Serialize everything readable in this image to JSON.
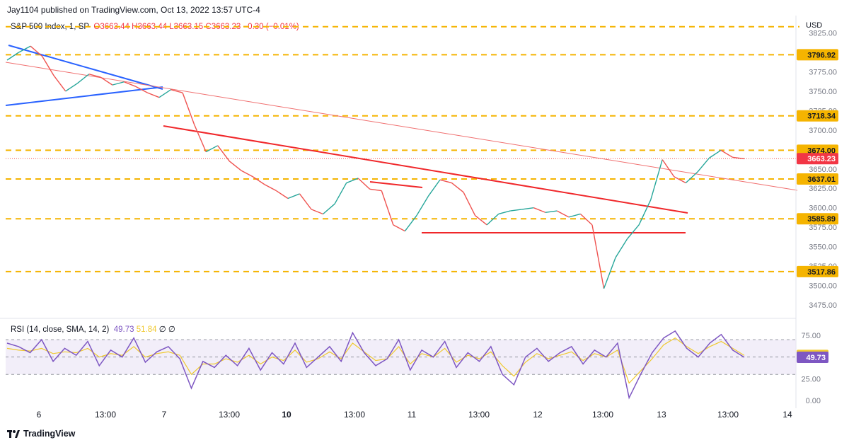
{
  "header": {
    "publisher": "Jay1104 published on TradingView.com, Oct 13, 2022 13:57 UTC-4",
    "symbol": "S&P 500 Index, 1, SP",
    "open": "O3663.44",
    "high": "H3663.44",
    "low": "L3663.15",
    "close": "C3663.23",
    "change": "−0.30 (−0.01%)"
  },
  "currency": "USD",
  "rsi_legend": {
    "label": "RSI (14, close, SMA, 14, 2)",
    "rsi_value": "49.73",
    "sma_value": "51.84",
    "extras": "∅ ∅"
  },
  "footer": {
    "brand": "TradingView"
  },
  "colors": {
    "candles_up": "#26a69a",
    "candles_down": "#ef5350",
    "level_line": "#f5b400",
    "trend_red": "#f0272a",
    "trend_blue": "#2962ff",
    "rsi": "#7e57c2",
    "rsi_sma": "#f0c930"
  },
  "chart_data": [
    {
      "type": "line",
      "name": "S&P 500 Index 1-minute price",
      "y_axis_ticks": [
        "3825.00",
        "3800.00",
        "3775.00",
        "3750.00",
        "3725.00",
        "3700.00",
        "3675.00",
        "3650.00",
        "3625.00",
        "3600.00",
        "3575.00",
        "3550.00",
        "3525.00",
        "3500.00",
        "3475.00"
      ],
      "ylim": [
        3462,
        3842
      ],
      "x_ticks": [
        "6",
        "13:00",
        "7",
        "13:00",
        "10",
        "13:00",
        "11",
        "13:00",
        "12",
        "13:00",
        "13",
        "13:00",
        "14"
      ],
      "series": [
        {
          "values": [
            3790,
            3800,
            3808,
            3795,
            3770,
            3750,
            3760,
            3772,
            3768,
            3758,
            3762,
            3756,
            3748,
            3742,
            3752,
            3748,
            3707,
            3672,
            3680,
            3660,
            3648,
            3640,
            3630,
            3622,
            3612,
            3618,
            3598,
            3592,
            3605,
            3632,
            3638,
            3624,
            3622,
            3578,
            3570,
            3590,
            3615,
            3636,
            3632,
            3620,
            3590,
            3578,
            3592,
            3596,
            3598,
            3600,
            3594,
            3596,
            3588,
            3592,
            3578,
            3496,
            3536,
            3560,
            3578,
            3610,
            3662,
            3640,
            3632,
            3646,
            3664,
            3674,
            3665,
            3663
          ]
        }
      ],
      "price_labels": [
        "3796.92",
        "3718.34",
        "3674.00",
        "3663.23",
        "3637.01",
        "3585.89",
        "3517.86"
      ],
      "horizontal_levels": [
        3833,
        3796.92,
        3718.34,
        3674.0,
        3637.01,
        3585.89,
        3517.86
      ],
      "last_price": 3663.23
    },
    {
      "type": "line",
      "name": "RSI (14, close, SMA, 14, 2)",
      "y_axis_ticks": [
        "75.00",
        "25.00",
        "0.00"
      ],
      "ylim": [
        -5,
        95
      ],
      "band": [
        30,
        70
      ],
      "series": [
        {
          "name": "RSI",
          "values": [
            66,
            62,
            55,
            70,
            45,
            60,
            52,
            68,
            40,
            58,
            50,
            72,
            44,
            56,
            62,
            48,
            14,
            45,
            38,
            52,
            40,
            60,
            35,
            55,
            42,
            66,
            38,
            50,
            62,
            45,
            78,
            55,
            40,
            48,
            70,
            35,
            58,
            50,
            68,
            38,
            55,
            45,
            62,
            30,
            18,
            50,
            60,
            45,
            55,
            62,
            42,
            58,
            50,
            66,
            3,
            30,
            55,
            72,
            80,
            60,
            50,
            66,
            76,
            58,
            49.73
          ],
          "value": "49.73"
        },
        {
          "name": "SMA",
          "values": [
            60,
            58,
            57,
            60,
            54,
            56,
            55,
            60,
            50,
            54,
            52,
            62,
            50,
            54,
            56,
            52,
            30,
            42,
            42,
            48,
            44,
            52,
            42,
            50,
            46,
            58,
            44,
            48,
            56,
            48,
            66,
            56,
            46,
            48,
            62,
            42,
            54,
            50,
            60,
            44,
            52,
            48,
            56,
            40,
            28,
            44,
            54,
            48,
            52,
            56,
            46,
            54,
            50,
            58,
            20,
            34,
            48,
            64,
            72,
            62,
            54,
            62,
            68,
            60,
            51.84
          ],
          "value": "51.84"
        }
      ]
    }
  ]
}
